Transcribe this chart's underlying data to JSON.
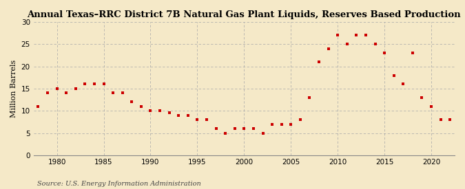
{
  "title": "Annual Texas–RRC District 7B Natural Gas Plant Liquids, Reserves Based Production",
  "ylabel": "Million Barrels",
  "source": "Source: U.S. Energy Information Administration",
  "background_color": "#f5e9c8",
  "marker_color": "#cc0000",
  "grid_color": "#aaaaaa",
  "xlim": [
    1977.5,
    2022.5
  ],
  "ylim": [
    0,
    30
  ],
  "yticks": [
    0,
    5,
    10,
    15,
    20,
    25,
    30
  ],
  "xticks": [
    1980,
    1985,
    1990,
    1995,
    2000,
    2005,
    2010,
    2015,
    2020
  ],
  "years": [
    1978,
    1979,
    1980,
    1981,
    1982,
    1983,
    1984,
    1985,
    1986,
    1987,
    1988,
    1989,
    1990,
    1991,
    1992,
    1993,
    1994,
    1995,
    1996,
    1997,
    1998,
    1999,
    2000,
    2001,
    2002,
    2003,
    2004,
    2005,
    2006,
    2007,
    2008,
    2009,
    2010,
    2011,
    2012,
    2013,
    2014,
    2015,
    2016,
    2017,
    2018,
    2019,
    2020,
    2021,
    2022
  ],
  "values": [
    11,
    14,
    15,
    14,
    15,
    16,
    16,
    16,
    14,
    14,
    12,
    11,
    10,
    10,
    9.5,
    9,
    9,
    8,
    8,
    6,
    5,
    6,
    6,
    6,
    5,
    7,
    7,
    7,
    8,
    13,
    21,
    24,
    27,
    25,
    27,
    27,
    25,
    23,
    18,
    16,
    23,
    13,
    11,
    8,
    8
  ]
}
